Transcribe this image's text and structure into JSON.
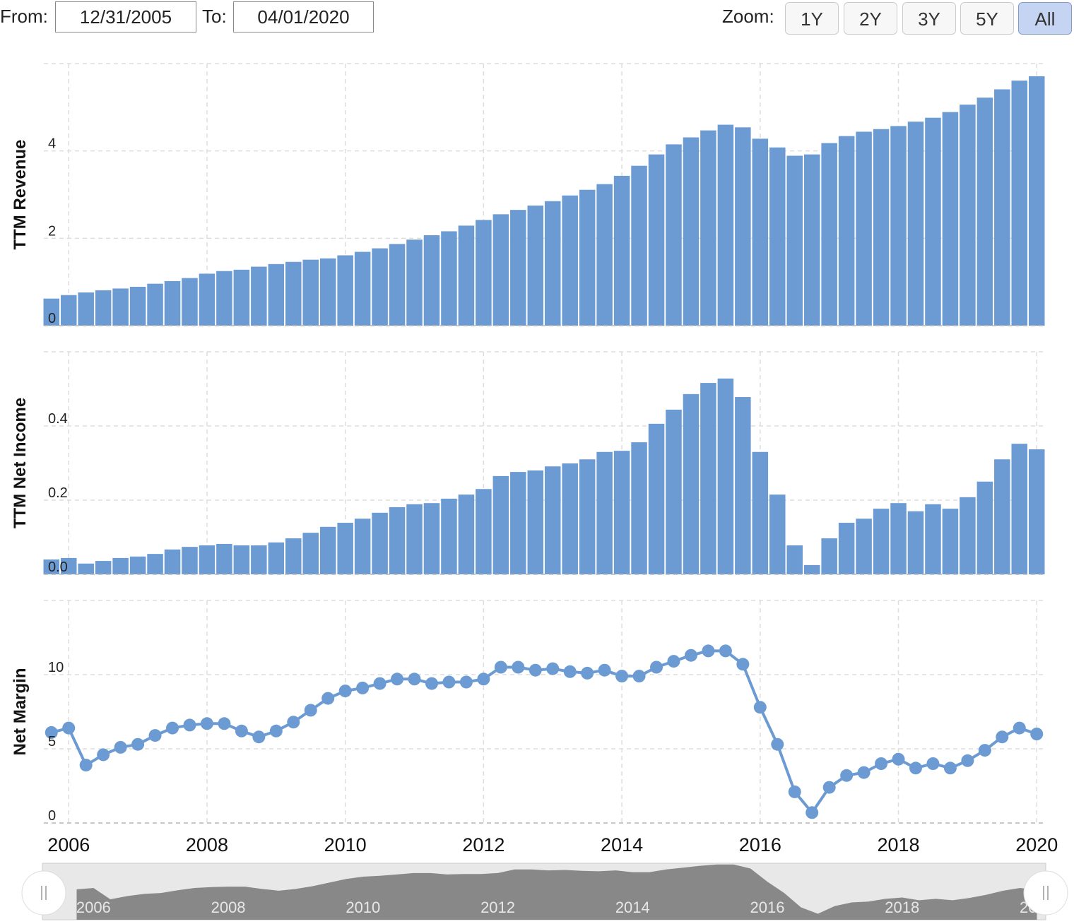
{
  "ui": {
    "from_label": "From:",
    "from_value": "12/31/2005",
    "to_label": "To:",
    "to_value": "04/01/2020",
    "zoom_label": "Zoom:",
    "zoom_buttons": [
      "1Y",
      "2Y",
      "3Y",
      "5Y",
      "All"
    ],
    "active_zoom": 4
  },
  "chart_data": [
    {
      "type": "bar",
      "y_label": "TTM Revenue",
      "color": "#6b9bd2",
      "ylim": [
        0,
        6
      ],
      "yticks": [
        0,
        2,
        4
      ],
      "x": [
        2005.75,
        2006,
        2006.25,
        2006.5,
        2006.75,
        2007,
        2007.25,
        2007.5,
        2007.75,
        2008,
        2008.25,
        2008.5,
        2008.75,
        2009,
        2009.25,
        2009.5,
        2009.75,
        2010,
        2010.25,
        2010.5,
        2010.75,
        2011,
        2011.25,
        2011.5,
        2011.75,
        2012,
        2012.25,
        2012.5,
        2012.75,
        2013,
        2013.25,
        2013.5,
        2013.75,
        2014,
        2014.25,
        2014.5,
        2014.75,
        2015,
        2015.25,
        2015.5,
        2015.75,
        2016,
        2016.25,
        2016.5,
        2016.75,
        2017,
        2017.25,
        2017.5,
        2017.75,
        2018,
        2018.25,
        2018.5,
        2018.75,
        2019,
        2019.25,
        2019.5,
        2019.75,
        2020
      ],
      "values": [
        0.62,
        0.7,
        0.76,
        0.81,
        0.85,
        0.89,
        0.96,
        1.02,
        1.09,
        1.19,
        1.25,
        1.28,
        1.35,
        1.41,
        1.46,
        1.51,
        1.54,
        1.61,
        1.69,
        1.77,
        1.87,
        1.97,
        2.07,
        2.16,
        2.29,
        2.42,
        2.55,
        2.65,
        2.75,
        2.85,
        2.98,
        3.11,
        3.24,
        3.43,
        3.66,
        3.92,
        4.15,
        4.31,
        4.47,
        4.6,
        4.54,
        4.28,
        4.08,
        3.89,
        3.92,
        4.18,
        4.34,
        4.44,
        4.5,
        4.57,
        4.67,
        4.76,
        4.89,
        5.06,
        5.22,
        5.41,
        5.61,
        5.71
      ]
    },
    {
      "type": "bar",
      "y_label": "TTM Net Income",
      "color": "#6b9bd2",
      "ylim": [
        0,
        0.6
      ],
      "yticks": [
        {
          "value": 0,
          "label": "0.0"
        },
        0.2,
        0.4
      ],
      "x": [
        2005.75,
        2006,
        2006.25,
        2006.5,
        2006.75,
        2007,
        2007.25,
        2007.5,
        2007.75,
        2008,
        2008.25,
        2008.5,
        2008.75,
        2009,
        2009.25,
        2009.5,
        2009.75,
        2010,
        2010.25,
        2010.5,
        2010.75,
        2011,
        2011.25,
        2011.5,
        2011.75,
        2012,
        2012.25,
        2012.5,
        2012.75,
        2013,
        2013.25,
        2013.5,
        2013.75,
        2014,
        2014.25,
        2014.5,
        2014.75,
        2015,
        2015.25,
        2015.5,
        2015.75,
        2016,
        2016.25,
        2016.5,
        2016.75,
        2017,
        2017.25,
        2017.5,
        2017.75,
        2018,
        2018.25,
        2018.5,
        2018.75,
        2019,
        2019.25,
        2019.5,
        2019.75,
        2020
      ],
      "values": [
        0.04,
        0.044,
        0.029,
        0.036,
        0.044,
        0.048,
        0.055,
        0.067,
        0.074,
        0.078,
        0.082,
        0.078,
        0.078,
        0.086,
        0.097,
        0.112,
        0.128,
        0.139,
        0.15,
        0.166,
        0.181,
        0.189,
        0.192,
        0.204,
        0.215,
        0.23,
        0.265,
        0.276,
        0.28,
        0.291,
        0.299,
        0.31,
        0.33,
        0.333,
        0.356,
        0.406,
        0.444,
        0.486,
        0.516,
        0.528,
        0.478,
        0.33,
        0.215,
        0.078,
        0.025,
        0.097,
        0.139,
        0.15,
        0.177,
        0.192,
        0.17,
        0.189,
        0.177,
        0.208,
        0.25,
        0.31,
        0.352,
        0.337
      ]
    },
    {
      "type": "line",
      "y_label": "Net Margin",
      "color": "#6b9bd2",
      "ylim": [
        0,
        15
      ],
      "yticks": [
        0,
        5,
        10
      ],
      "xlim": [
        2005.64,
        2020.11
      ],
      "xticks": [
        2006,
        2008,
        2010,
        2012,
        2014,
        2016,
        2018,
        2020
      ],
      "x": [
        2005.75,
        2006,
        2006.25,
        2006.5,
        2006.75,
        2007,
        2007.25,
        2007.5,
        2007.75,
        2008,
        2008.25,
        2008.5,
        2008.75,
        2009,
        2009.25,
        2009.5,
        2009.75,
        2010,
        2010.25,
        2010.5,
        2010.75,
        2011,
        2011.25,
        2011.5,
        2011.75,
        2012,
        2012.25,
        2012.5,
        2012.75,
        2013,
        2013.25,
        2013.5,
        2013.75,
        2014,
        2014.25,
        2014.5,
        2014.75,
        2015,
        2015.25,
        2015.5,
        2015.75,
        2016,
        2016.25,
        2016.5,
        2016.75,
        2017,
        2017.25,
        2017.5,
        2017.75,
        2018,
        2018.25,
        2018.5,
        2018.75,
        2019,
        2019.25,
        2019.5,
        2019.75,
        2020
      ],
      "values": [
        6.1,
        6.4,
        3.9,
        4.6,
        5.1,
        5.3,
        5.9,
        6.4,
        6.6,
        6.7,
        6.7,
        6.2,
        5.8,
        6.2,
        6.8,
        7.6,
        8.4,
        8.9,
        9.1,
        9.4,
        9.7,
        9.7,
        9.4,
        9.5,
        9.5,
        9.7,
        10.5,
        10.5,
        10.3,
        10.4,
        10.2,
        10.1,
        10.3,
        9.9,
        9.9,
        10.5,
        10.9,
        11.3,
        11.6,
        11.6,
        10.7,
        7.8,
        5.3,
        2.1,
        0.7,
        2.4,
        3.2,
        3.4,
        4.0,
        4.3,
        3.7,
        4.0,
        3.7,
        4.2,
        4.9,
        5.8,
        6.4,
        6.0
      ]
    }
  ]
}
